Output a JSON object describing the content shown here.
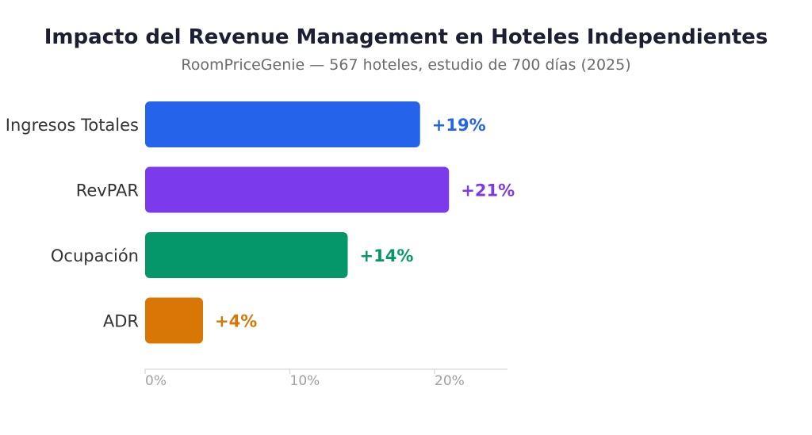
{
  "chart_data": {
    "type": "bar",
    "orientation": "horizontal",
    "title": "Impacto del Revenue Management en Hoteles Independientes",
    "subtitle": "RoomPriceGenie — 567 hoteles, estudio de 700 días (2025)",
    "categories": [
      "Ingresos Totales",
      "RevPAR",
      "Ocupación",
      "ADR"
    ],
    "values": [
      19,
      21,
      14,
      4
    ],
    "value_labels": [
      "+19%",
      "+21%",
      "+14%",
      "+4%"
    ],
    "colors": [
      "#2563eb",
      "#7c3aed",
      "#059669",
      "#d97706"
    ],
    "xlim": [
      0,
      25
    ],
    "x_ticks": [
      0,
      10,
      20
    ],
    "x_tick_labels": [
      "0%",
      "10%",
      "20%"
    ],
    "xlabel": "",
    "ylabel": "",
    "grid": false,
    "legend": "none"
  }
}
